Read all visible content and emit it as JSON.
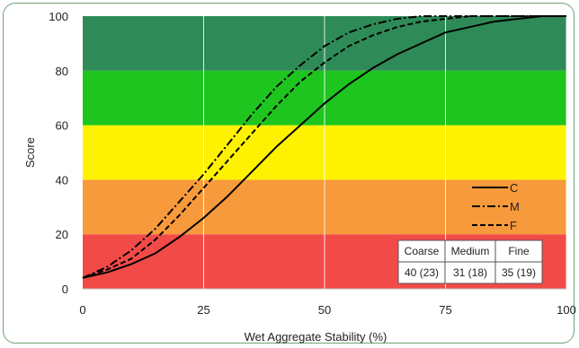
{
  "chart_data": {
    "type": "line",
    "xlabel": "Wet Aggregate Stability (%)",
    "ylabel": "Score",
    "xlim": [
      0,
      100
    ],
    "ylim": [
      0,
      100
    ],
    "xticks": [
      0,
      25,
      50,
      75,
      100
    ],
    "yticks": [
      0,
      20,
      40,
      60,
      80,
      100
    ],
    "grid": "vertical",
    "bands": [
      {
        "from": 0,
        "to": 20,
        "color": "#f24b47"
      },
      {
        "from": 20,
        "to": 40,
        "color": "#f79a3b"
      },
      {
        "from": 40,
        "to": 60,
        "color": "#fff200"
      },
      {
        "from": 60,
        "to": 80,
        "color": "#1ec51e"
      },
      {
        "from": 80,
        "to": 100,
        "color": "#2e8b57"
      }
    ],
    "series": [
      {
        "name": "C",
        "dash": "solid",
        "color": "#000000",
        "x": [
          0,
          5,
          10,
          15,
          20,
          25,
          30,
          35,
          40,
          45,
          50,
          55,
          60,
          65,
          70,
          75,
          80,
          85,
          90,
          95,
          100
        ],
        "y": [
          4,
          6,
          9,
          13,
          19,
          26,
          34,
          43,
          52,
          60,
          68,
          75,
          81,
          86,
          90,
          94,
          96,
          98,
          99,
          100,
          100
        ]
      },
      {
        "name": "M",
        "dash": "dashdot",
        "color": "#000000",
        "x": [
          0,
          5,
          10,
          15,
          20,
          25,
          30,
          35,
          40,
          45,
          50,
          55,
          60,
          65,
          70,
          75,
          80,
          85,
          90,
          95,
          100
        ],
        "y": [
          4,
          8,
          14,
          22,
          32,
          42,
          53,
          64,
          74,
          82,
          89,
          94,
          97,
          99,
          100,
          100,
          100,
          100,
          100,
          100,
          100
        ]
      },
      {
        "name": "F",
        "dash": "dashed",
        "color": "#000000",
        "x": [
          0,
          5,
          10,
          15,
          20,
          25,
          30,
          35,
          40,
          45,
          50,
          55,
          60,
          65,
          70,
          75,
          80,
          85,
          90,
          95,
          100
        ],
        "y": [
          4,
          7,
          11,
          18,
          27,
          37,
          47,
          57,
          67,
          76,
          83,
          89,
          93,
          96,
          98,
          99,
          100,
          100,
          100,
          100,
          100
        ]
      }
    ],
    "legend": {
      "position": "bottom-right",
      "items": [
        "C",
        "M",
        "F"
      ]
    },
    "table": {
      "headers": [
        "Coarse",
        "Medium",
        "Fine"
      ],
      "values": [
        "40 (23)",
        "31 (18)",
        "35 (19)"
      ]
    }
  }
}
